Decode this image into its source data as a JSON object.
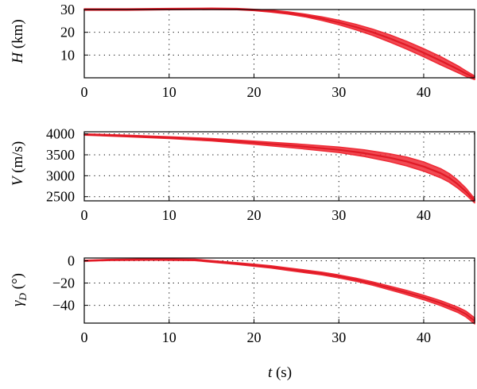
{
  "chart_data": [
    {
      "type": "line",
      "ylabel": {
        "symbol": "H",
        "unit": " (km)"
      },
      "xlim": [
        0,
        46
      ],
      "ylim": [
        0,
        30
      ],
      "xticks": [
        0,
        10,
        20,
        30,
        40
      ],
      "xtick_labels": [
        "0",
        "10",
        "20",
        "30",
        "40"
      ],
      "yticks": [
        10,
        20,
        30
      ],
      "ytick_labels": [
        "10",
        "20",
        "30"
      ],
      "grid": true,
      "color": "#ee2a35",
      "series": [
        {
          "x": [
            0,
            5,
            10,
            15,
            18,
            20,
            22,
            24,
            26,
            28,
            30,
            32,
            34,
            36,
            38,
            40,
            42,
            44,
            45,
            46
          ],
          "y": [
            30,
            30,
            30.2,
            30.3,
            30.2,
            29.8,
            29.3,
            28.5,
            27.4,
            26,
            24.3,
            22.3,
            20,
            17.3,
            14.3,
            11,
            7.5,
            3.8,
            1.8,
            0
          ],
          "spread": [
            0.3,
            0.3,
            0.3,
            0.3,
            0.3,
            0.3,
            0.4,
            0.5,
            0.6,
            0.8,
            1.0,
            1.2,
            1.4,
            1.6,
            1.7,
            1.8,
            1.8,
            1.5,
            1.2,
            0.8
          ]
        }
      ]
    },
    {
      "type": "line",
      "ylabel": {
        "symbol": "V",
        "unit": " (m/s)"
      },
      "xlim": [
        0,
        46
      ],
      "ylim": [
        2400,
        4050
      ],
      "xticks": [
        0,
        10,
        20,
        30,
        40
      ],
      "xtick_labels": [
        "0",
        "10",
        "20",
        "30",
        "40"
      ],
      "yticks": [
        2500,
        3000,
        3500,
        4000
      ],
      "ytick_labels": [
        "2500",
        "3000",
        "3500",
        "4000"
      ],
      "grid": true,
      "color": "#ee2a35",
      "series": [
        {
          "x": [
            0,
            5,
            10,
            15,
            20,
            25,
            30,
            33,
            36,
            38,
            40,
            42,
            43,
            44,
            45,
            46
          ],
          "y": [
            3985,
            3950,
            3910,
            3860,
            3790,
            3710,
            3620,
            3540,
            3430,
            3340,
            3220,
            3060,
            2950,
            2800,
            2620,
            2400
          ],
          "spread": [
            15,
            18,
            22,
            28,
            38,
            50,
            65,
            80,
            95,
            105,
            110,
            110,
            105,
            95,
            80,
            50
          ]
        }
      ]
    },
    {
      "type": "line",
      "ylabel": {
        "symbol": "γ",
        "sub": "D",
        "unit": " (°)"
      },
      "xlim": [
        0,
        46
      ],
      "ylim": [
        -56,
        2.5
      ],
      "xticks": [
        0,
        10,
        20,
        30,
        40
      ],
      "xtick_labels": [
        "0",
        "10",
        "20",
        "30",
        "40"
      ],
      "yticks": [
        -40,
        -20,
        0
      ],
      "ytick_labels": [
        "−40",
        "−20",
        "0"
      ],
      "grid": true,
      "color": "#ee2a35",
      "series": [
        {
          "x": [
            0,
            3,
            8,
            13,
            15,
            18,
            20,
            22,
            24,
            26,
            28,
            30,
            32,
            34,
            36,
            38,
            40,
            42,
            44,
            45,
            46
          ],
          "y": [
            0,
            0.8,
            1.2,
            0.8,
            -0.5,
            -2.5,
            -4,
            -5.5,
            -7.5,
            -9.5,
            -11.5,
            -14,
            -17,
            -20.5,
            -24.5,
            -28.5,
            -33,
            -38,
            -44,
            -48,
            -54
          ],
          "spread": [
            0.4,
            0.5,
            0.6,
            0.6,
            0.7,
            0.8,
            0.9,
            1.0,
            1.1,
            1.2,
            1.2,
            1.3,
            1.4,
            1.5,
            1.7,
            1.9,
            2.0,
            2.2,
            2.4,
            2.6,
            2.8
          ]
        }
      ]
    }
  ],
  "xlabel": {
    "symbol": "t",
    "unit": " (s)"
  }
}
